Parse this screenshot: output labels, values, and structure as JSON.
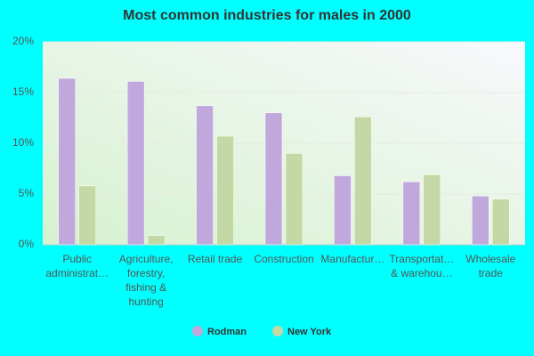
{
  "chart_data": {
    "type": "bar",
    "title": "Most common industries for males in 2000",
    "categories": [
      [
        "Public",
        "administrat…"
      ],
      [
        "Agriculture,",
        "forestry,",
        "fishing &",
        "hunting"
      ],
      [
        "Retail trade"
      ],
      [
        "Construction"
      ],
      [
        "Manufactur…"
      ],
      [
        "Transportat…",
        "& warehou…"
      ],
      [
        "Wholesale",
        "trade"
      ]
    ],
    "series": [
      {
        "name": "Rodman",
        "color": "#c0a8dc",
        "values": [
          16.4,
          16.1,
          13.7,
          13.0,
          6.8,
          6.2,
          4.8
        ]
      },
      {
        "name": "New York",
        "color": "#c3d8a4",
        "values": [
          5.8,
          0.9,
          10.7,
          9.0,
          12.6,
          6.9,
          4.5
        ]
      }
    ],
    "ylim": [
      0,
      20
    ],
    "yticks": [
      {
        "value": 0,
        "label": "0%"
      },
      {
        "value": 5,
        "label": "5%"
      },
      {
        "value": 10,
        "label": "10%"
      },
      {
        "value": 15,
        "label": "15%"
      },
      {
        "value": 20,
        "label": "20%"
      }
    ],
    "grid": true
  }
}
